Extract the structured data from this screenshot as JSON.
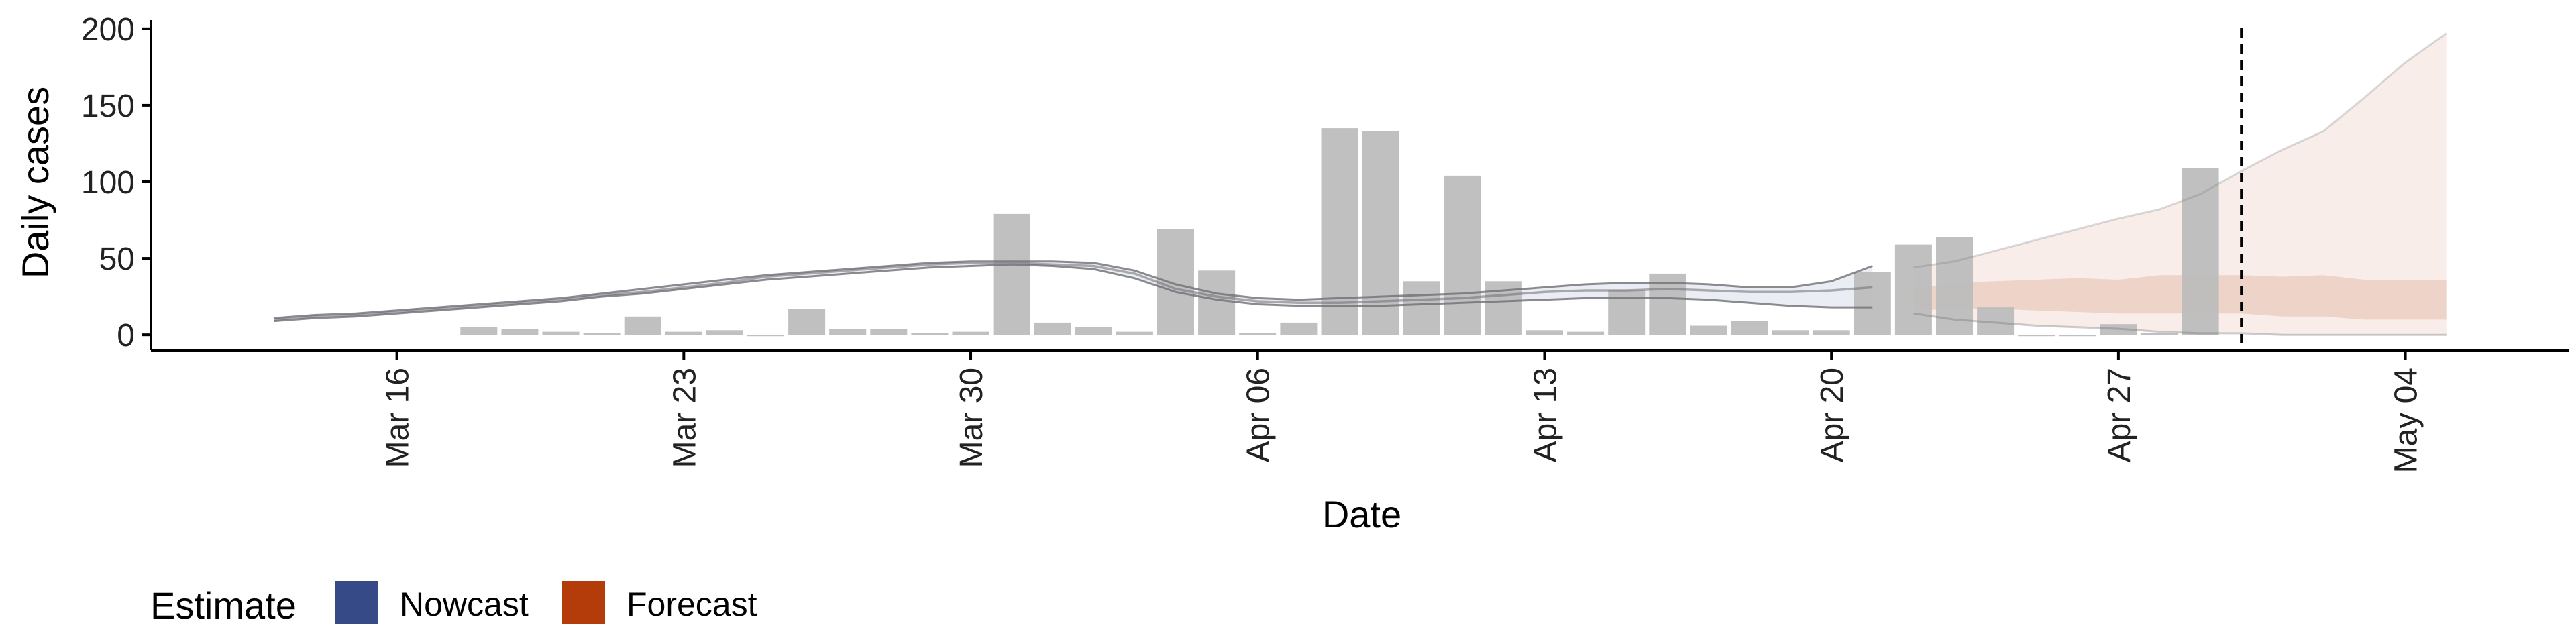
{
  "chart_data": {
    "type": "bar",
    "title": "",
    "xlabel": "Date",
    "ylabel": "Daily cases",
    "ylim": [
      -10,
      210
    ],
    "yticks": [
      0,
      50,
      100,
      150,
      200
    ],
    "xlim": [
      "2020-03-10",
      "2020-05-08"
    ],
    "xticks": [
      {
        "date": "2020-03-16",
        "label": "Mar 16"
      },
      {
        "date": "2020-03-23",
        "label": "Mar 23"
      },
      {
        "date": "2020-03-30",
        "label": "Mar 30"
      },
      {
        "date": "2020-04-06",
        "label": "Apr 06"
      },
      {
        "date": "2020-04-13",
        "label": "Apr 13"
      },
      {
        "date": "2020-04-20",
        "label": "Apr 20"
      },
      {
        "date": "2020-04-27",
        "label": "Apr 27"
      },
      {
        "date": "2020-05-04",
        "label": "May 04"
      }
    ],
    "forecast_date": "2020-04-30",
    "grid": false,
    "legend_position": "bottom-left",
    "legend": {
      "title": "Estimate",
      "items": [
        {
          "label": "Nowcast",
          "color": "#354a87"
        },
        {
          "label": "Forecast",
          "color": "#b33c0a"
        }
      ]
    },
    "colors": {
      "bars": "#bdbdbd",
      "nowcast": "#354a87",
      "forecast": "#b33c0a",
      "lines": "#6f6f74",
      "axis": "#000000"
    },
    "bars": {
      "dates": [
        "2020-03-18",
        "2020-03-19",
        "2020-03-20",
        "2020-03-21",
        "2020-03-22",
        "2020-03-23",
        "2020-03-24",
        "2020-03-25",
        "2020-03-26",
        "2020-03-27",
        "2020-03-28",
        "2020-03-29",
        "2020-03-30",
        "2020-03-31",
        "2020-04-01",
        "2020-04-02",
        "2020-04-03",
        "2020-04-04",
        "2020-04-05",
        "2020-04-06",
        "2020-04-07",
        "2020-04-08",
        "2020-04-09",
        "2020-04-10",
        "2020-04-11",
        "2020-04-12",
        "2020-04-13",
        "2020-04-14",
        "2020-04-15",
        "2020-04-16",
        "2020-04-17",
        "2020-04-18",
        "2020-04-19",
        "2020-04-20",
        "2020-04-21",
        "2020-04-22",
        "2020-04-23",
        "2020-04-24",
        "2020-04-25",
        "2020-04-26",
        "2020-04-27",
        "2020-04-28",
        "2020-04-29"
      ],
      "values": [
        5,
        4,
        2,
        1,
        12,
        2,
        3,
        0,
        17,
        4,
        4,
        1,
        2,
        79,
        8,
        5,
        2,
        69,
        42,
        1,
        8,
        135,
        133,
        35,
        104,
        35,
        3,
        2,
        29,
        40,
        6,
        9,
        3,
        3,
        41,
        59,
        64,
        18,
        0,
        0,
        7,
        1,
        109
      ]
    },
    "nowcast_median": {
      "dates": [
        "2020-03-13",
        "2020-03-14",
        "2020-03-15",
        "2020-03-16",
        "2020-03-17",
        "2020-03-18",
        "2020-03-19",
        "2020-03-20",
        "2020-03-21",
        "2020-03-22",
        "2020-03-23",
        "2020-03-24",
        "2020-03-25",
        "2020-03-26",
        "2020-03-27",
        "2020-03-28",
        "2020-03-29",
        "2020-03-30",
        "2020-03-31",
        "2020-04-01",
        "2020-04-02",
        "2020-04-03",
        "2020-04-04",
        "2020-04-05",
        "2020-04-06",
        "2020-04-07",
        "2020-04-08",
        "2020-04-09",
        "2020-04-10",
        "2020-04-11",
        "2020-04-12",
        "2020-04-13",
        "2020-04-14",
        "2020-04-15",
        "2020-04-16",
        "2020-04-17",
        "2020-04-18",
        "2020-04-19",
        "2020-04-20",
        "2020-04-21"
      ],
      "values": [
        10,
        12,
        13,
        15,
        17,
        19,
        21,
        23,
        26,
        28,
        31,
        34,
        38,
        40,
        42,
        44,
        46,
        47,
        47,
        46,
        45,
        40,
        30,
        25,
        22,
        21,
        21,
        22,
        23,
        24,
        26,
        28,
        29,
        29,
        30,
        29,
        28,
        28,
        29,
        31
      ]
    },
    "nowcast_upper": {
      "dates": [
        "2020-03-13",
        "2020-03-14",
        "2020-03-15",
        "2020-03-16",
        "2020-03-17",
        "2020-03-18",
        "2020-03-19",
        "2020-03-20",
        "2020-03-21",
        "2020-03-22",
        "2020-03-23",
        "2020-03-24",
        "2020-03-25",
        "2020-03-26",
        "2020-03-27",
        "2020-03-28",
        "2020-03-29",
        "2020-03-30",
        "2020-03-31",
        "2020-04-01",
        "2020-04-02",
        "2020-04-03",
        "2020-04-04",
        "2020-04-05",
        "2020-04-06",
        "2020-04-07",
        "2020-04-08",
        "2020-04-09",
        "2020-04-10",
        "2020-04-11",
        "2020-04-12",
        "2020-04-13",
        "2020-04-14",
        "2020-04-15",
        "2020-04-16",
        "2020-04-17",
        "2020-04-18",
        "2020-04-19",
        "2020-04-20",
        "2020-04-21"
      ],
      "values": [
        11,
        13,
        14,
        16,
        18,
        20,
        22,
        24,
        27,
        30,
        33,
        36,
        39,
        41,
        43,
        45,
        47,
        48,
        48,
        48,
        47,
        42,
        33,
        27,
        24,
        23,
        24,
        25,
        26,
        27,
        29,
        31,
        33,
        34,
        34,
        33,
        31,
        31,
        35,
        45
      ]
    },
    "nowcast_lower": {
      "dates": [
        "2020-03-13",
        "2020-03-14",
        "2020-03-15",
        "2020-03-16",
        "2020-03-17",
        "2020-03-18",
        "2020-03-19",
        "2020-03-20",
        "2020-03-21",
        "2020-03-22",
        "2020-03-23",
        "2020-03-24",
        "2020-03-25",
        "2020-03-26",
        "2020-03-27",
        "2020-03-28",
        "2020-03-29",
        "2020-03-30",
        "2020-03-31",
        "2020-04-01",
        "2020-04-02",
        "2020-04-03",
        "2020-04-04",
        "2020-04-05",
        "2020-04-06",
        "2020-04-07",
        "2020-04-08",
        "2020-04-09",
        "2020-04-10",
        "2020-04-11",
        "2020-04-12",
        "2020-04-13",
        "2020-04-14",
        "2020-04-15",
        "2020-04-16",
        "2020-04-17",
        "2020-04-18",
        "2020-04-19",
        "2020-04-20",
        "2020-04-21"
      ],
      "values": [
        9,
        11,
        12,
        14,
        16,
        18,
        20,
        22,
        25,
        27,
        30,
        33,
        36,
        38,
        40,
        42,
        44,
        45,
        46,
        45,
        43,
        37,
        28,
        23,
        20,
        19,
        19,
        19,
        20,
        21,
        22,
        23,
        24,
        24,
        24,
        23,
        21,
        19,
        18,
        18
      ]
    },
    "forecast_upper": {
      "dates": [
        "2020-04-22",
        "2020-04-23",
        "2020-04-24",
        "2020-04-25",
        "2020-04-26",
        "2020-04-27",
        "2020-04-28",
        "2020-04-29",
        "2020-04-30",
        "2020-05-01",
        "2020-05-02",
        "2020-05-03",
        "2020-05-04",
        "2020-05-05"
      ],
      "values": [
        44,
        48,
        55,
        62,
        69,
        76,
        82,
        92,
        107,
        121,
        133,
        155,
        178,
        197
      ]
    },
    "forecast_inner_upper": {
      "dates": [
        "2020-04-22",
        "2020-04-23",
        "2020-04-24",
        "2020-04-25",
        "2020-04-26",
        "2020-04-27",
        "2020-04-28",
        "2020-04-29",
        "2020-04-30",
        "2020-05-01",
        "2020-05-02",
        "2020-05-03",
        "2020-05-04",
        "2020-05-05"
      ],
      "values": [
        30,
        34,
        35,
        36,
        37,
        36,
        39,
        39,
        39,
        38,
        39,
        36,
        36,
        36
      ]
    },
    "forecast_inner_lower": {
      "dates": [
        "2020-04-22",
        "2020-04-23",
        "2020-04-24",
        "2020-04-25",
        "2020-04-26",
        "2020-04-27",
        "2020-04-28",
        "2020-04-29",
        "2020-04-30",
        "2020-05-01",
        "2020-05-02",
        "2020-05-03",
        "2020-05-04",
        "2020-05-05"
      ],
      "values": [
        16,
        17,
        17,
        16,
        15,
        14,
        14,
        14,
        14,
        12,
        12,
        10,
        10,
        10
      ]
    },
    "forecast_lower": {
      "dates": [
        "2020-04-22",
        "2020-04-23",
        "2020-04-24",
        "2020-04-25",
        "2020-04-26",
        "2020-04-27",
        "2020-04-28",
        "2020-04-29",
        "2020-04-30",
        "2020-05-01",
        "2020-05-02",
        "2020-05-03",
        "2020-05-04",
        "2020-05-05"
      ],
      "values": [
        14,
        10,
        8,
        6,
        5,
        4,
        2,
        1,
        1,
        0,
        0,
        0,
        0,
        0
      ]
    }
  }
}
